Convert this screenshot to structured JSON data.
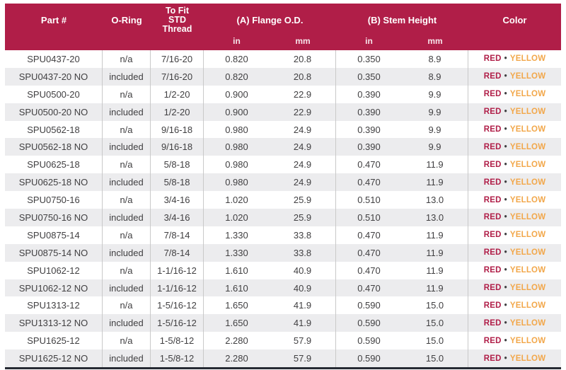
{
  "table": {
    "headers": {
      "part": "Part #",
      "oring": "O-Ring",
      "thread_lines": [
        "To Fit",
        "STD",
        "Thread"
      ],
      "flange": "(A) Flange O.D.",
      "stem": "(B) Stem Height",
      "color": "Color",
      "unit_in": "in",
      "unit_mm": "mm"
    },
    "color_bullet": "•",
    "colors": {
      "header_bg": "#b01e48",
      "alt_row_bg": "#ececee",
      "body_text": "#414042",
      "red_label": "#b01e48",
      "yellow_label": "#f2a74a",
      "divider": "#c9c9c9",
      "bottom_bar": "#262a33"
    },
    "rows": [
      {
        "part": "SPU0437-20",
        "oring": "n/a",
        "thread": "7/16-20",
        "flange_in": "0.820",
        "flange_mm": "20.8",
        "stem_in": "0.350",
        "stem_mm": "8.9",
        "color_red": "RED",
        "color_yellow": "YELLOW"
      },
      {
        "part": "SPU0437-20 NO",
        "oring": "included",
        "thread": "7/16-20",
        "flange_in": "0.820",
        "flange_mm": "20.8",
        "stem_in": "0.350",
        "stem_mm": "8.9",
        "color_red": "RED",
        "color_yellow": "YELLOW"
      },
      {
        "part": "SPU0500-20",
        "oring": "n/a",
        "thread": "1/2-20",
        "flange_in": "0.900",
        "flange_mm": "22.9",
        "stem_in": "0.390",
        "stem_mm": "9.9",
        "color_red": "RED",
        "color_yellow": "YELLOW"
      },
      {
        "part": "SPU0500-20 NO",
        "oring": "included",
        "thread": "1/2-20",
        "flange_in": "0.900",
        "flange_mm": "22.9",
        "stem_in": "0.390",
        "stem_mm": "9.9",
        "color_red": "RED",
        "color_yellow": "YELLOW"
      },
      {
        "part": "SPU0562-18",
        "oring": "n/a",
        "thread": "9/16-18",
        "flange_in": "0.980",
        "flange_mm": "24.9",
        "stem_in": "0.390",
        "stem_mm": "9.9",
        "color_red": "RED",
        "color_yellow": "YELLOW"
      },
      {
        "part": "SPU0562-18 NO",
        "oring": "included",
        "thread": "9/16-18",
        "flange_in": "0.980",
        "flange_mm": "24.9",
        "stem_in": "0.390",
        "stem_mm": "9.9",
        "color_red": "RED",
        "color_yellow": "YELLOW"
      },
      {
        "part": "SPU0625-18",
        "oring": "n/a",
        "thread": "5/8-18",
        "flange_in": "0.980",
        "flange_mm": "24.9",
        "stem_in": "0.470",
        "stem_mm": "11.9",
        "color_red": "RED",
        "color_yellow": "YELLOW"
      },
      {
        "part": "SPU0625-18 NO",
        "oring": "included",
        "thread": "5/8-18",
        "flange_in": "0.980",
        "flange_mm": "24.9",
        "stem_in": "0.470",
        "stem_mm": "11.9",
        "color_red": "RED",
        "color_yellow": "YELLOW"
      },
      {
        "part": "SPU0750-16",
        "oring": "n/a",
        "thread": "3/4-16",
        "flange_in": "1.020",
        "flange_mm": "25.9",
        "stem_in": "0.510",
        "stem_mm": "13.0",
        "color_red": "RED",
        "color_yellow": "YELLOW"
      },
      {
        "part": "SPU0750-16 NO",
        "oring": "included",
        "thread": "3/4-16",
        "flange_in": "1.020",
        "flange_mm": "25.9",
        "stem_in": "0.510",
        "stem_mm": "13.0",
        "color_red": "RED",
        "color_yellow": "YELLOW"
      },
      {
        "part": "SPU0875-14",
        "oring": "n/a",
        "thread": "7/8-14",
        "flange_in": "1.330",
        "flange_mm": "33.8",
        "stem_in": "0.470",
        "stem_mm": "11.9",
        "color_red": "RED",
        "color_yellow": "YELLOW"
      },
      {
        "part": "SPU0875-14 NO",
        "oring": "included",
        "thread": "7/8-14",
        "flange_in": "1.330",
        "flange_mm": "33.8",
        "stem_in": "0.470",
        "stem_mm": "11.9",
        "color_red": "RED",
        "color_yellow": "YELLOW"
      },
      {
        "part": "SPU1062-12",
        "oring": "n/a",
        "thread": "1-1/16-12",
        "flange_in": "1.610",
        "flange_mm": "40.9",
        "stem_in": "0.470",
        "stem_mm": "11.9",
        "color_red": "RED",
        "color_yellow": "YELLOW"
      },
      {
        "part": "SPU1062-12 NO",
        "oring": "included",
        "thread": "1-1/16-12",
        "flange_in": "1.610",
        "flange_mm": "40.9",
        "stem_in": "0.470",
        "stem_mm": "11.9",
        "color_red": "RED",
        "color_yellow": "YELLOW"
      },
      {
        "part": "SPU1313-12",
        "oring": "n/a",
        "thread": "1-5/16-12",
        "flange_in": "1.650",
        "flange_mm": "41.9",
        "stem_in": "0.590",
        "stem_mm": "15.0",
        "color_red": "RED",
        "color_yellow": "YELLOW"
      },
      {
        "part": "SPU1313-12 NO",
        "oring": "included",
        "thread": "1-5/16-12",
        "flange_in": "1.650",
        "flange_mm": "41.9",
        "stem_in": "0.590",
        "stem_mm": "15.0",
        "color_red": "RED",
        "color_yellow": "YELLOW"
      },
      {
        "part": "SPU1625-12",
        "oring": "n/a",
        "thread": "1-5/8-12",
        "flange_in": "2.280",
        "flange_mm": "57.9",
        "stem_in": "0.590",
        "stem_mm": "15.0",
        "color_red": "RED",
        "color_yellow": "YELLOW"
      },
      {
        "part": "SPU1625-12 NO",
        "oring": "included",
        "thread": "1-5/8-12",
        "flange_in": "2.280",
        "flange_mm": "57.9",
        "stem_in": "0.590",
        "stem_mm": "15.0",
        "color_red": "RED",
        "color_yellow": "YELLOW"
      }
    ]
  }
}
